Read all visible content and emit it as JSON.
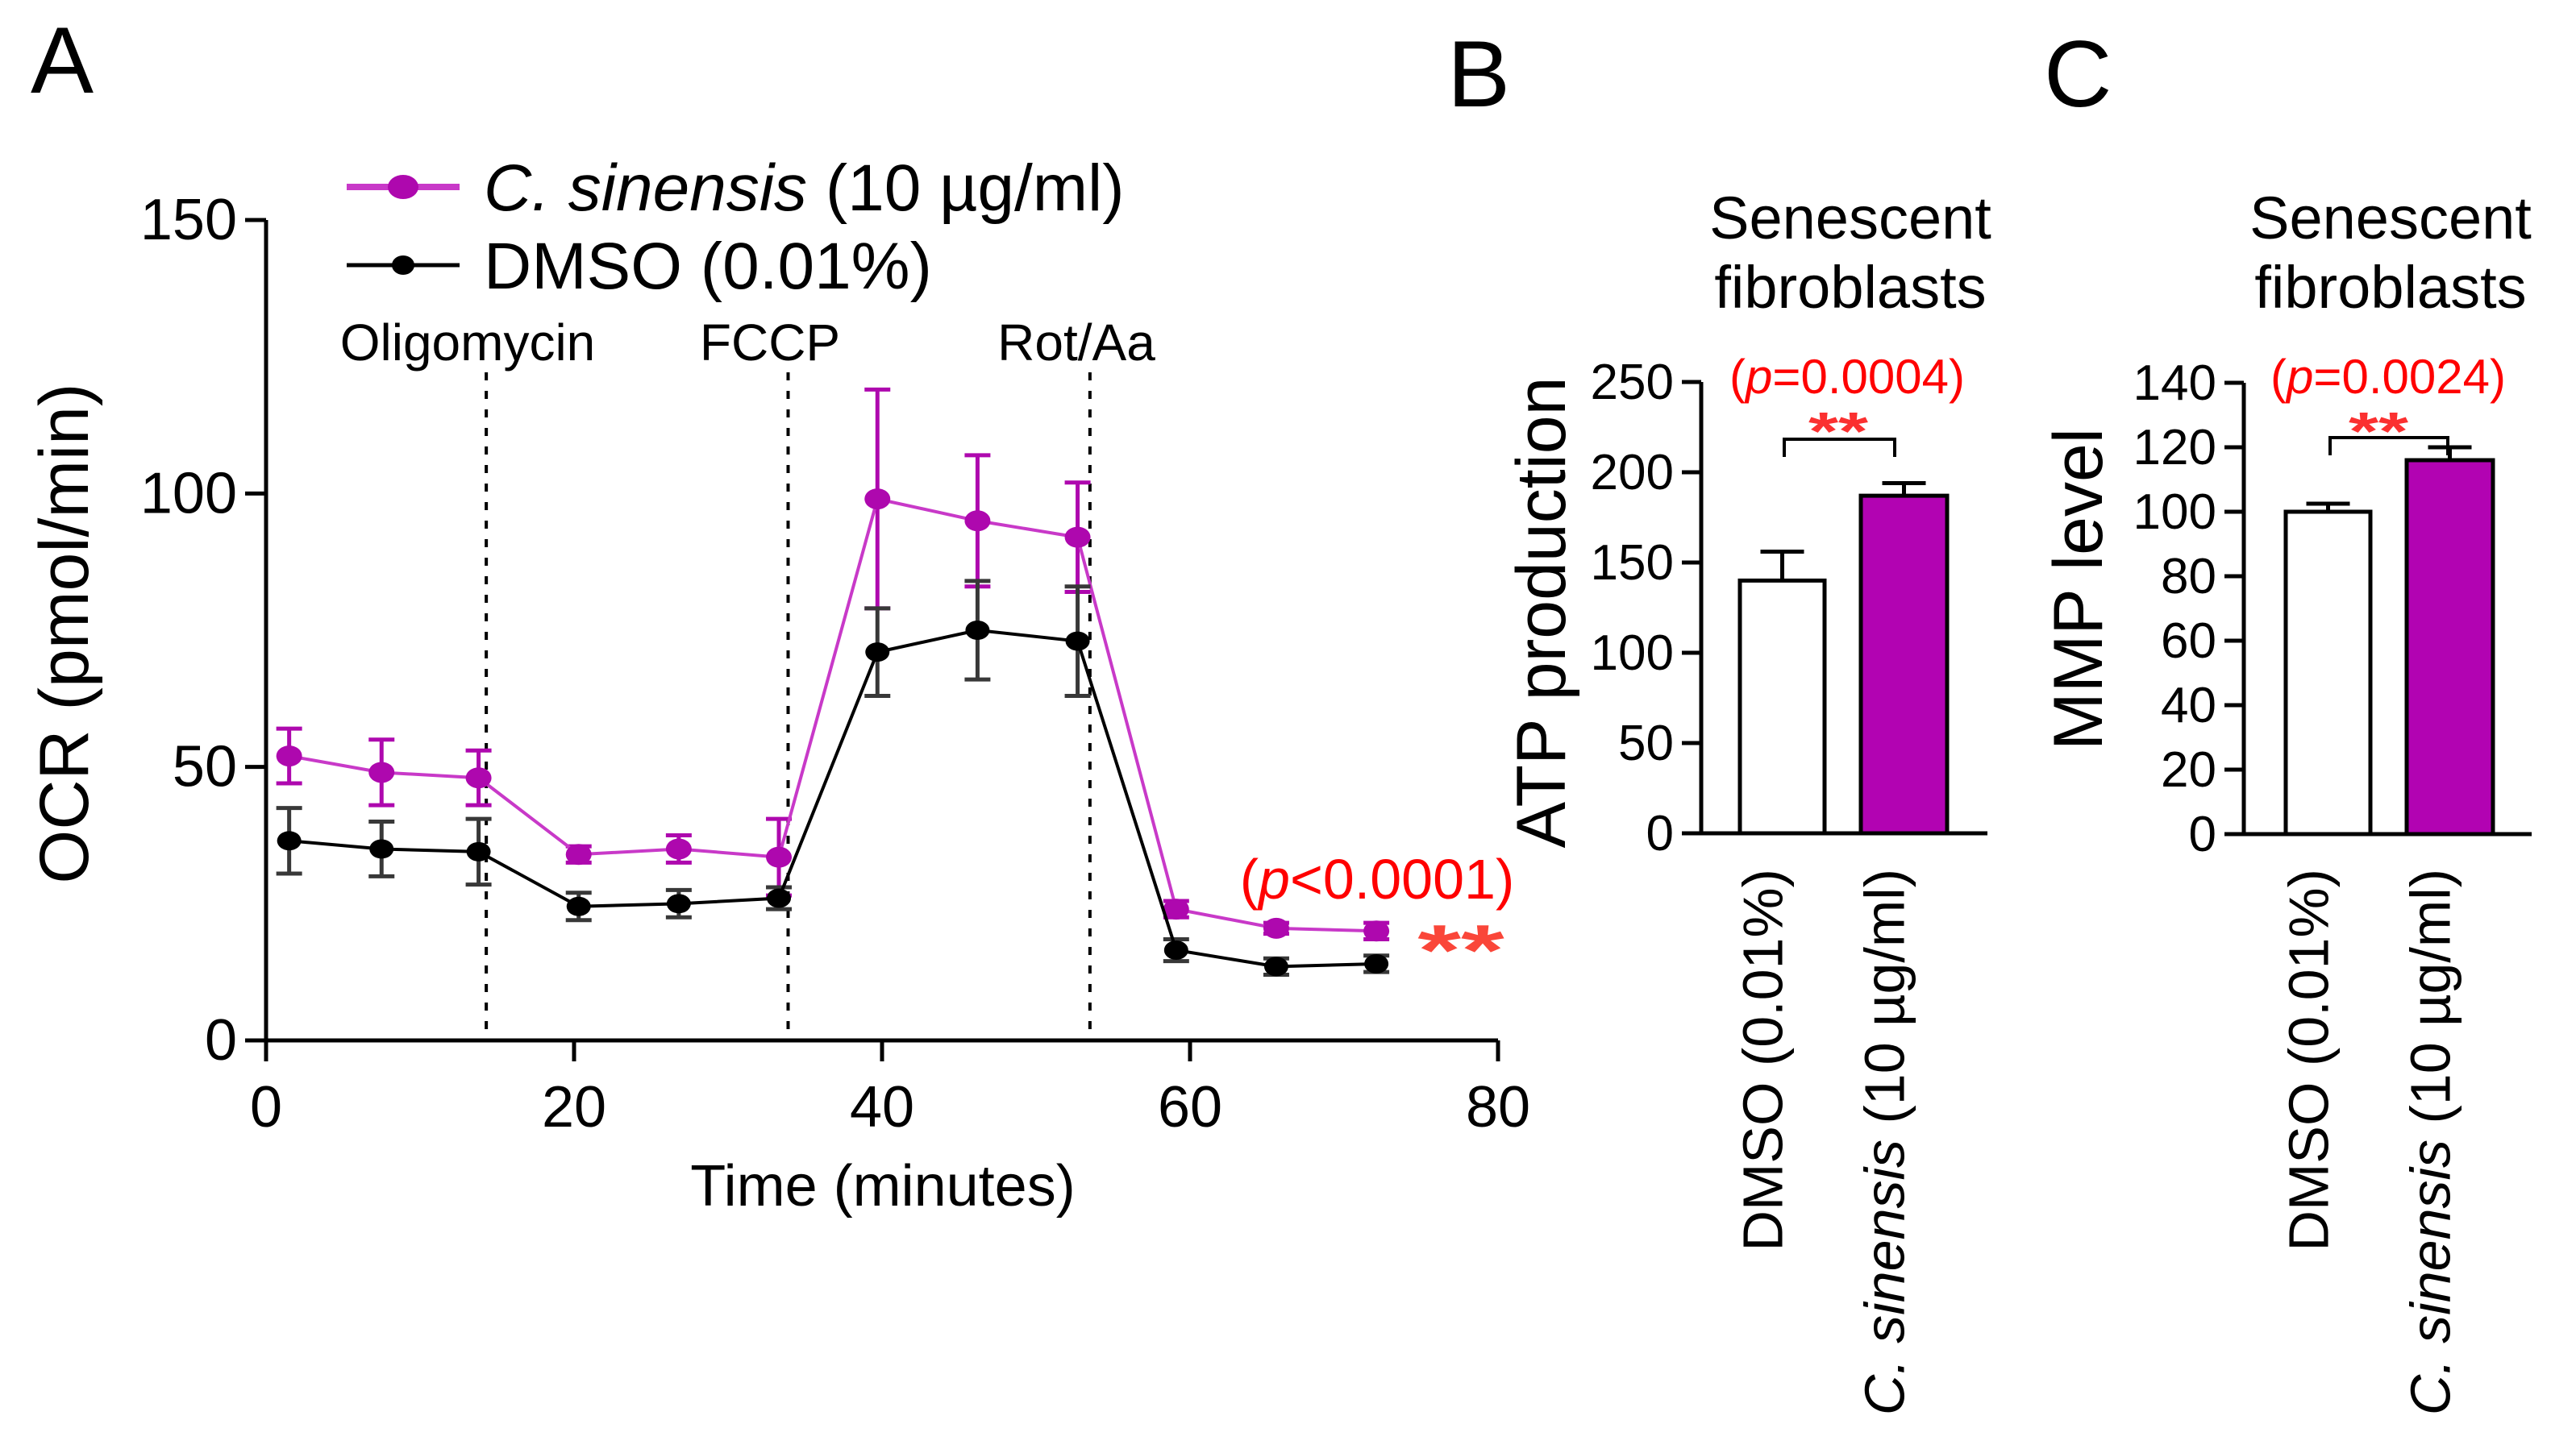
{
  "colors": {
    "magenta_line": "#C839C8",
    "magenta_marker": "#AE08AE",
    "magenta_bar": "#B203B2",
    "black": "#000000",
    "err_black": "#383838",
    "red_text": "#FF0000",
    "red_stars_a": "#FA4639",
    "red_stars_bc": "#FB3030",
    "white_bar": "#FFFFFF"
  },
  "panel_letters": {
    "a": "A",
    "b": "B",
    "c": "C"
  },
  "chart_data": [
    {
      "id": "A",
      "type": "line",
      "title": "",
      "xlabel": "Time (minutes)",
      "ylabel": "OCR (pmol/min)",
      "xlim": [
        0,
        80
      ],
      "ylim": [
        0,
        150
      ],
      "xticks": [
        0,
        20,
        40,
        60,
        80
      ],
      "yticks": [
        0,
        50,
        100,
        150
      ],
      "grid": false,
      "legend_position": "top-left",
      "x": [
        1.5,
        7.5,
        13.8,
        20.3,
        26.8,
        33.3,
        39.7,
        46.2,
        52.7,
        59.1,
        65.6,
        72.1
      ],
      "series": [
        {
          "name": "C. sinensis (10 µg/ml)",
          "color_key": "magenta",
          "values": [
            52,
            49,
            48,
            34,
            35,
            33.5,
            99,
            95,
            92,
            24,
            20.5,
            20
          ],
          "errors": [
            5,
            6,
            5,
            1.5,
            2.5,
            7,
            20,
            12,
            10,
            1.5,
            1,
            1.5
          ],
          "label_parts": [
            {
              "t": "C. sinensis",
              "i": true
            },
            {
              "t": " (10 µg/ml)",
              "i": false
            }
          ]
        },
        {
          "name": "DMSO (0.01%)",
          "color_key": "black",
          "values": [
            36.5,
            35,
            34.5,
            24.5,
            25,
            26,
            71,
            75,
            73,
            16.5,
            13.5,
            14
          ],
          "errors": [
            6,
            5,
            6,
            2.5,
            2.5,
            2,
            8,
            9,
            10,
            2,
            1.5,
            1.5
          ],
          "label_parts": [
            {
              "t": "DMSO (0.01%)",
              "i": false
            }
          ]
        }
      ],
      "event_lines": [
        {
          "label": "Oligomycin",
          "x": 14.3
        },
        {
          "label": "FCCP",
          "x": 33.9
        },
        {
          "label": "Rot/Aa",
          "x": 53.5
        }
      ],
      "annotation": {
        "text": "(p<0.0001)",
        "parts": [
          {
            "t": "(",
            "i": false
          },
          {
            "t": "p",
            "i": true
          },
          {
            "t": "<0.0001)",
            "i": false
          }
        ],
        "stars": "**"
      }
    },
    {
      "id": "B",
      "type": "bar",
      "title_lines": [
        "Senescent",
        "fibroblasts"
      ],
      "ylabel": "ATP production",
      "ylim": [
        0,
        250
      ],
      "yticks": [
        0,
        50,
        100,
        150,
        200,
        250
      ],
      "categories": [
        "DMSO (0.01%)",
        "C. sinensis (10 µg/ml)"
      ],
      "category_parts": [
        [
          {
            "t": "DMSO (0.01%)",
            "i": false
          }
        ],
        [
          {
            "t": "C. sinensis",
            "i": true
          },
          {
            "t": " (10 µg/ml)",
            "i": false
          }
        ]
      ],
      "values": [
        140,
        187
      ],
      "errors": [
        16,
        7
      ],
      "bar_color_keys": [
        "white",
        "magenta"
      ],
      "p_text": "(p=0.0004)",
      "p_parts": [
        {
          "t": "(",
          "i": false
        },
        {
          "t": "p",
          "i": true
        },
        {
          "t": "=0.0004)",
          "i": false
        }
      ],
      "stars": "**"
    },
    {
      "id": "C",
      "type": "bar",
      "title_lines": [
        "Senescent",
        "fibroblasts"
      ],
      "ylabel": "MMP level",
      "ylim": [
        0,
        140
      ],
      "yticks": [
        0,
        20,
        40,
        60,
        80,
        100,
        120,
        140
      ],
      "categories": [
        "DMSO (0.01%)",
        "C. sinensis (10 µg/ml)"
      ],
      "category_parts": [
        [
          {
            "t": "DMSO (0.01%)",
            "i": false
          }
        ],
        [
          {
            "t": "C. sinensis",
            "i": true
          },
          {
            "t": " (10 µg/ml)",
            "i": false
          }
        ]
      ],
      "values": [
        100,
        116
      ],
      "errors": [
        2.5,
        4
      ],
      "bar_color_keys": [
        "white",
        "magenta"
      ],
      "p_text": "(p=0.0024)",
      "p_parts": [
        {
          "t": "(",
          "i": false
        },
        {
          "t": "p",
          "i": true
        },
        {
          "t": "=0.0024)",
          "i": false
        }
      ],
      "stars": "**"
    }
  ]
}
